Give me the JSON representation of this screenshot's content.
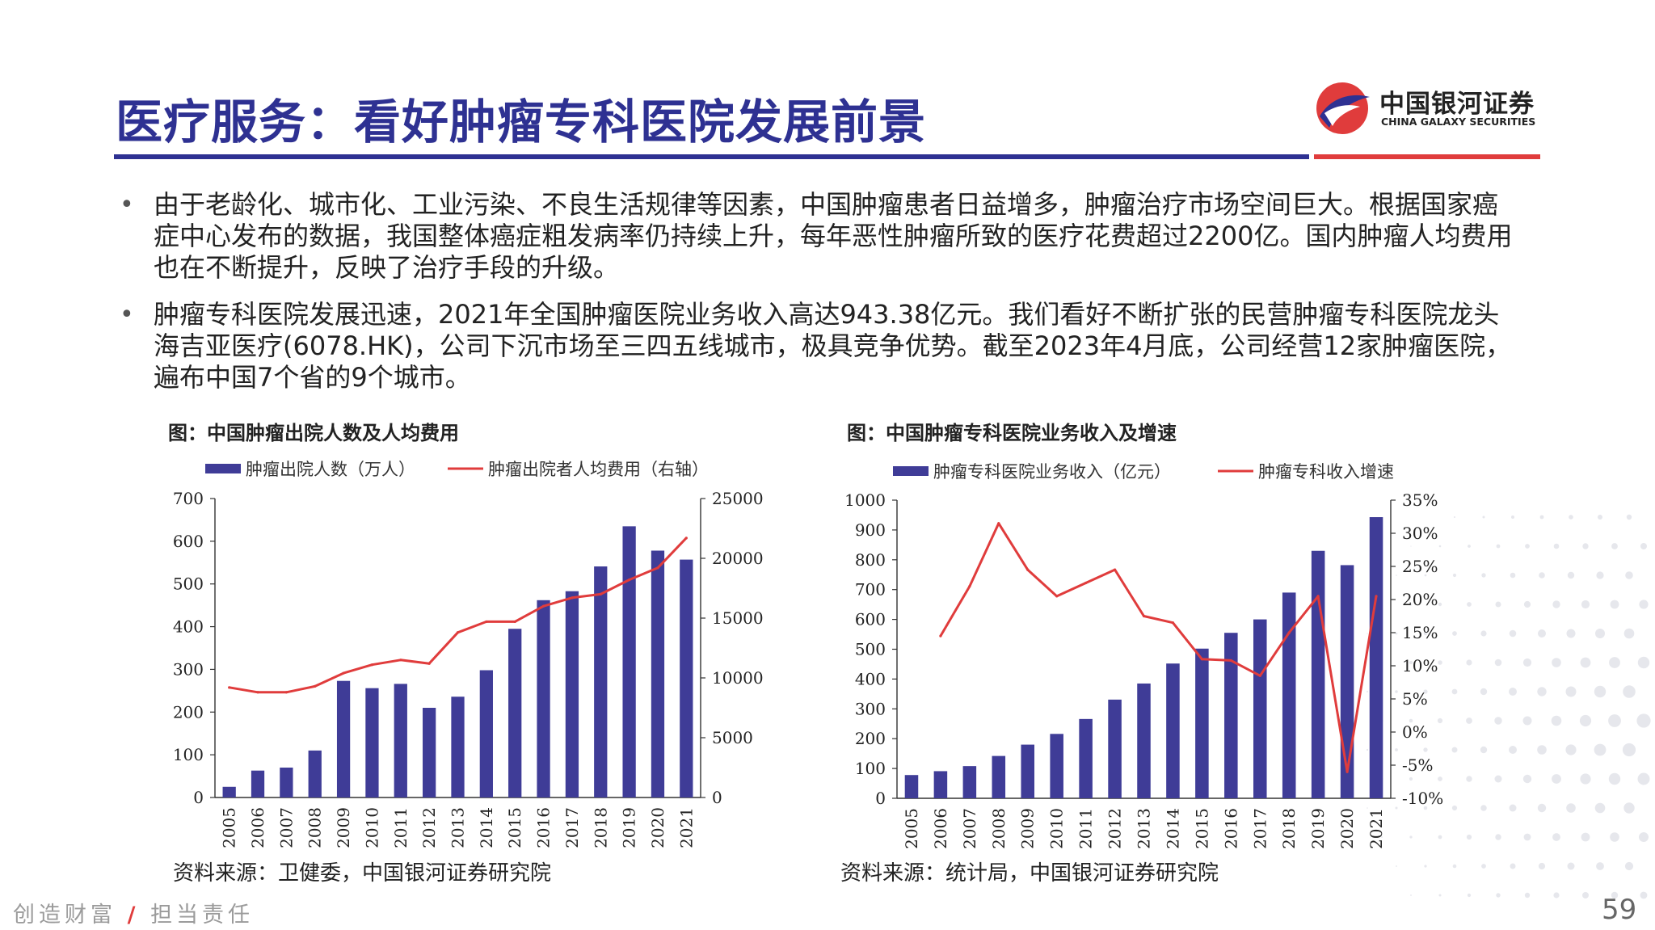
{
  "title": "医疗服务：看好肿瘤专科医院发展前景",
  "logo": {
    "cn": "中国银河证券",
    "en": "CHINA GALAXY SECURITIES"
  },
  "bullets": [
    "由于老龄化、城市化、工业污染、不良生活规律等因素，中国肿瘤患者日益增多，肿瘤治疗市场空间巨大。根据国家癌症中心发布的数据，我国整体癌症粗发病率仍持续上升，每年恶性肿瘤所致的医疗花费超过2200亿。国内肿瘤人均费用也在不断提升，反映了治疗手段的升级。",
    "肿瘤专科医院发展迅速，2021年全国肿瘤医院业务收入高达943.38亿元。我们看好不断扩张的民营肿瘤专科医院龙头海吉亚医疗(6078.HK)，公司下沉市场至三四五线城市，极具竞争优势。截至2023年4月底，公司经营12家肿瘤医院，遍布中国7个省的9个城市。"
  ],
  "figures": [
    {
      "title": "图：中国肿瘤出院人数及人均费用",
      "source": "资料来源：卫健委，中国银河证券研究院"
    },
    {
      "title": "图：中国肿瘤专科医院业务收入及增速",
      "source": "资料来源：统计局，中国银河证券研究院"
    }
  ],
  "footer": {
    "slogan_left": "创造财富",
    "slash": "/",
    "slogan_right": "担当责任",
    "page": "59"
  },
  "colors": {
    "bar": "#3f3c97",
    "line": "#e03c3c",
    "title": "#2e3192",
    "accent": "#e03c3c"
  },
  "chart_data": [
    {
      "type": "bar",
      "categories": [
        "2005",
        "2006",
        "2007",
        "2008",
        "2009",
        "2010",
        "2011",
        "2012",
        "2013",
        "2014",
        "2015",
        "2016",
        "2017",
        "2018",
        "2019",
        "2020",
        "2021"
      ],
      "series": [
        {
          "name": "肿瘤出院人数（万人）",
          "type": "bar",
          "axis": "left",
          "values": [
            25,
            63,
            70,
            110,
            273,
            256,
            266,
            210,
            236,
            298,
            395,
            462,
            483,
            541,
            635,
            578,
            557
          ]
        },
        {
          "name": "肿瘤出院者人均费用（右轴）",
          "type": "line",
          "axis": "right",
          "values": [
            9200,
            8800,
            8800,
            9300,
            10400,
            11100,
            11500,
            11200,
            13800,
            14700,
            14700,
            16000,
            16700,
            17000,
            18200,
            19200,
            21700
          ]
        }
      ],
      "ylim_left": [
        0,
        700
      ],
      "yticks_left": [
        "0",
        "100",
        "200",
        "300",
        "400",
        "500",
        "600",
        "700"
      ],
      "ylim_right": [
        0,
        25000
      ],
      "yticks_right": [
        "0",
        "5000",
        "10000",
        "15000",
        "20000",
        "25000"
      ],
      "legend": "top"
    },
    {
      "type": "bar",
      "categories": [
        "2005",
        "2006",
        "2007",
        "2008",
        "2009",
        "2010",
        "2011",
        "2012",
        "2013",
        "2014",
        "2015",
        "2016",
        "2017",
        "2018",
        "2019",
        "2020",
        "2021"
      ],
      "series": [
        {
          "name": "肿瘤专科医院业务收入（亿元）",
          "type": "bar",
          "axis": "left",
          "values": [
            78,
            91,
            108,
            142,
            180,
            216,
            266,
            331,
            385,
            452,
            502,
            555,
            600,
            690,
            830,
            782,
            943
          ]
        },
        {
          "name": "肿瘤专科收入增速",
          "type": "line",
          "axis": "right",
          "values": [
            null,
            14.5,
            22.0,
            31.5,
            24.5,
            20.5,
            22.5,
            24.5,
            17.5,
            16.5,
            11.0,
            10.8,
            8.5,
            15.0,
            20.5,
            -6.0,
            20.5
          ]
        }
      ],
      "ylim_left": [
        0,
        1000
      ],
      "yticks_left": [
        "0",
        "100",
        "200",
        "300",
        "400",
        "500",
        "600",
        "700",
        "800",
        "900",
        "1000"
      ],
      "ylim_right": [
        -10,
        35
      ],
      "yticks_right": [
        "-10%",
        "-5%",
        "0%",
        "5%",
        "10%",
        "15%",
        "20%",
        "25%",
        "30%",
        "35%"
      ],
      "legend": "top"
    }
  ]
}
